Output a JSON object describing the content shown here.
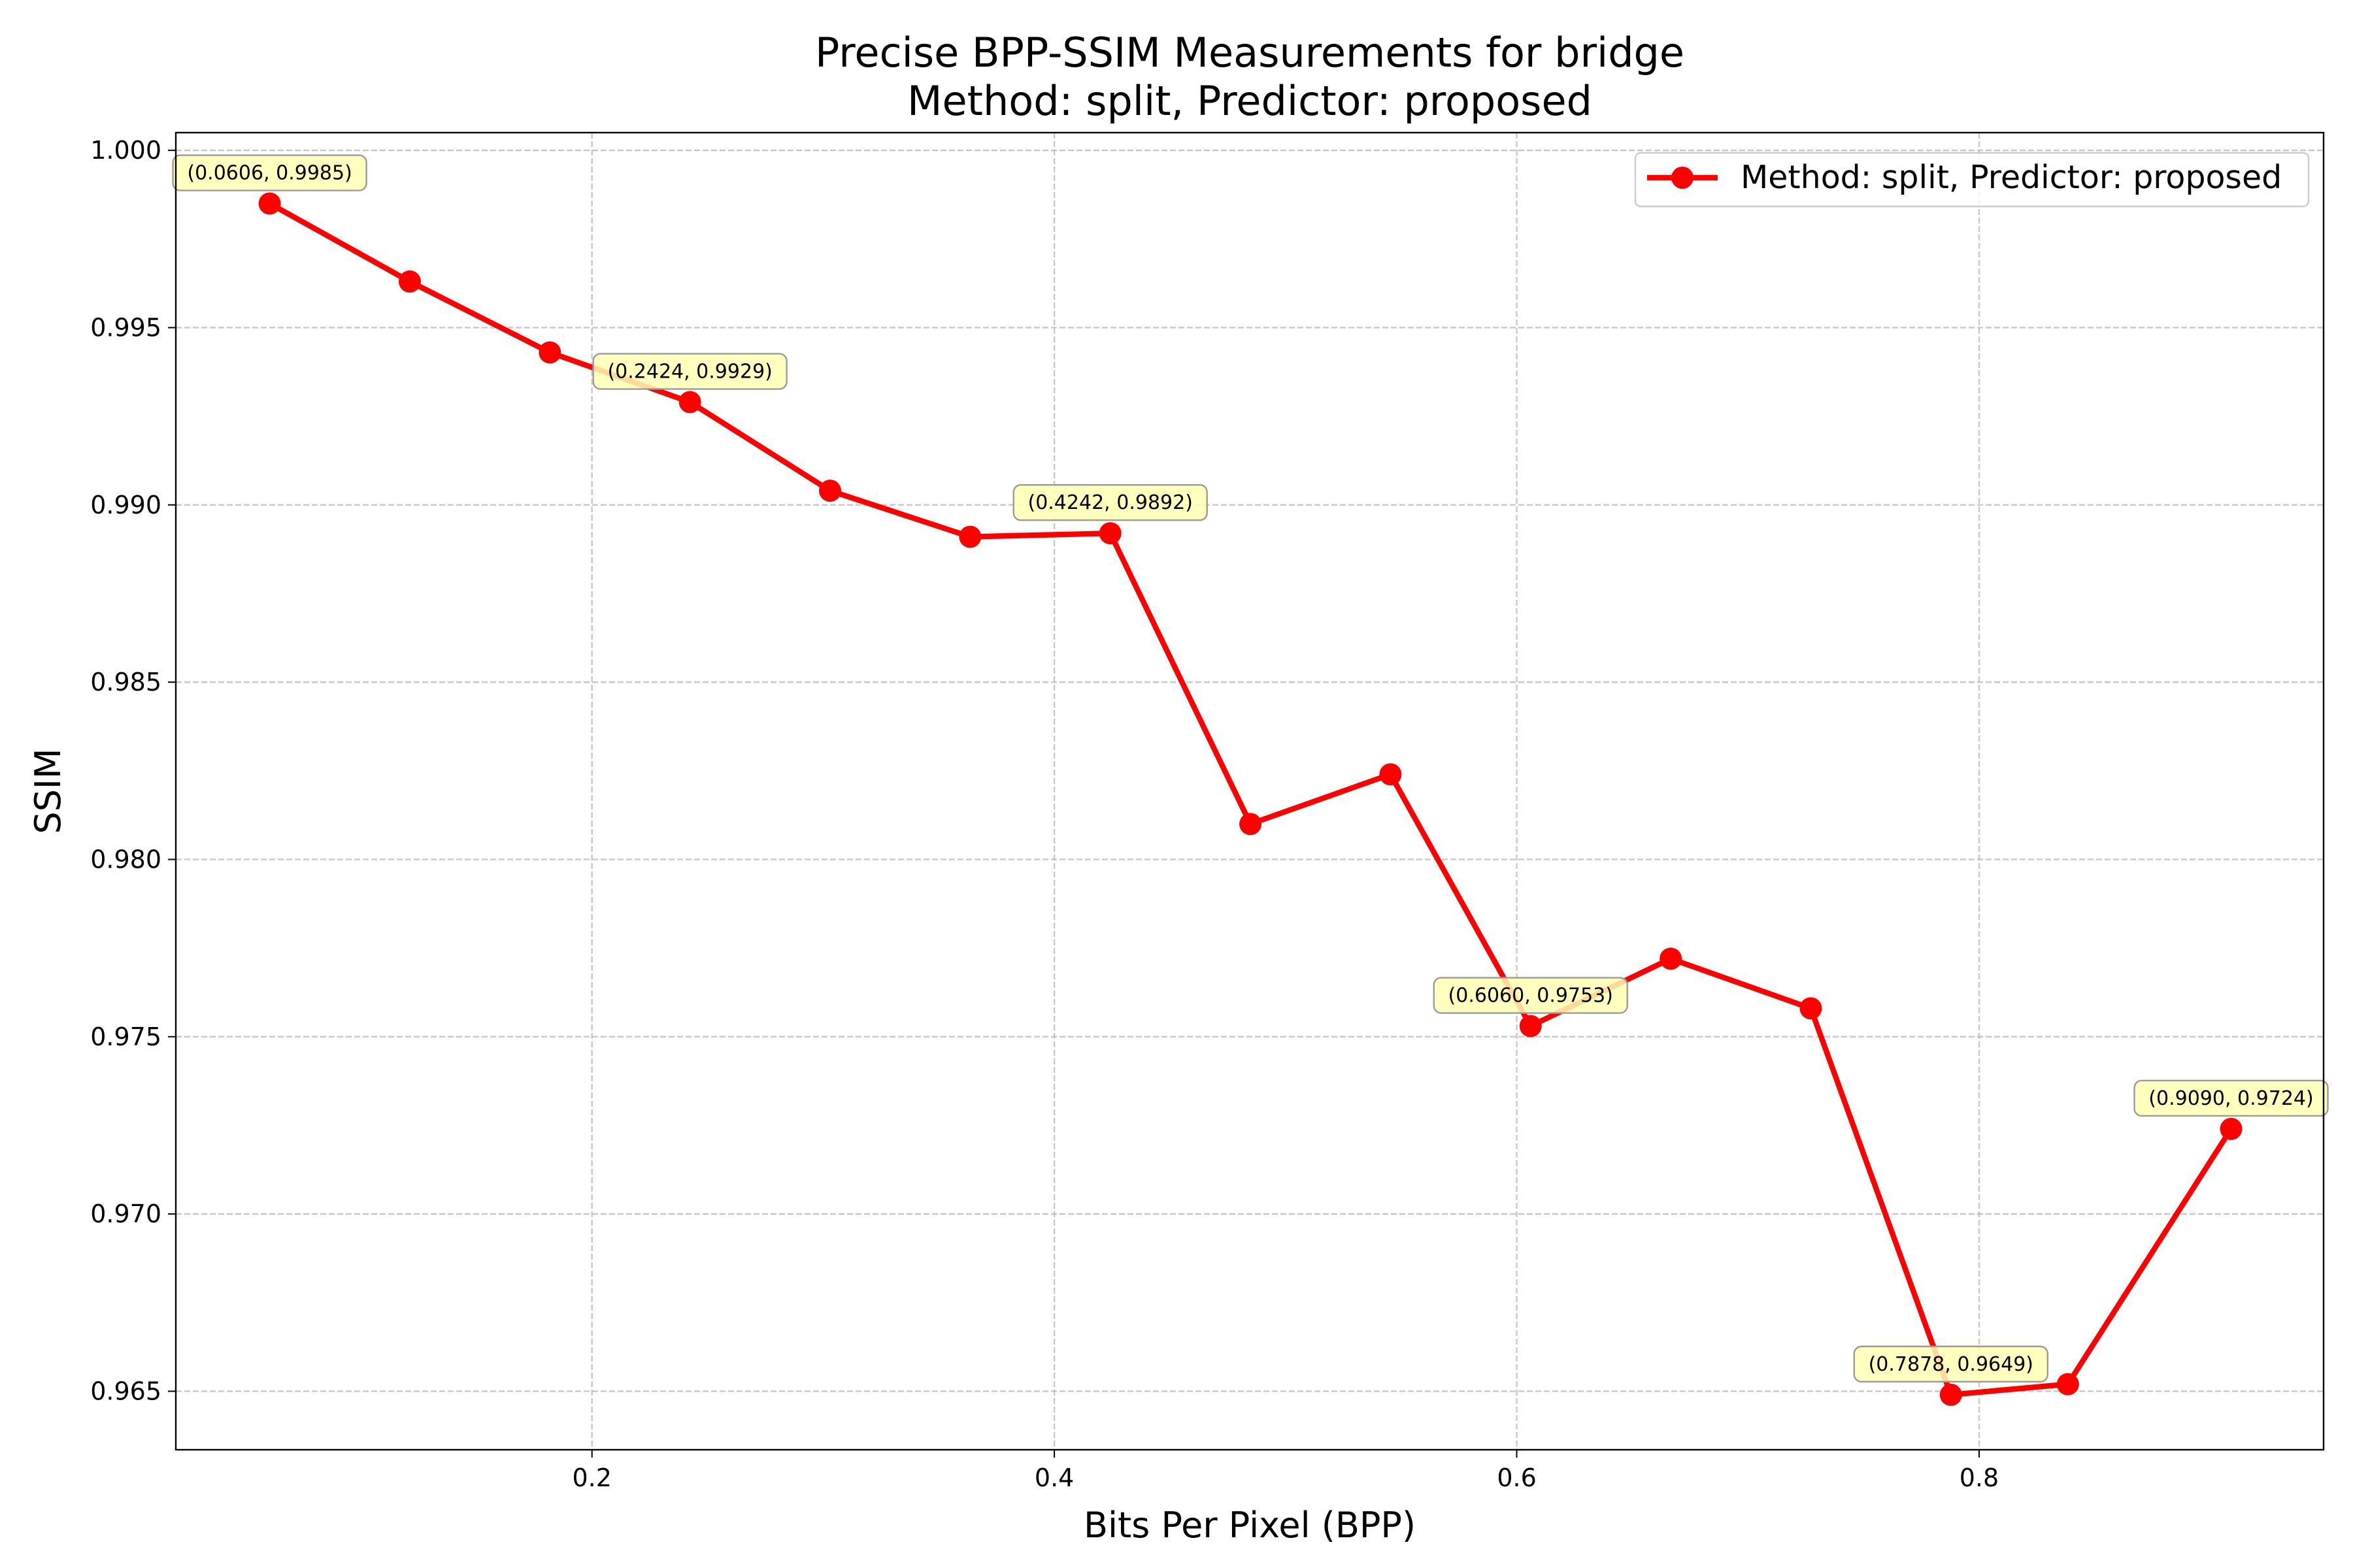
{
  "chart_data": {
    "type": "line",
    "title": "Precise BPP-SSIM Measurements for bridge",
    "subtitle": "Method: split, Predictor: proposed",
    "xlabel": "Bits Per Pixel (BPP)",
    "ylabel": "SSIM",
    "xlim": [
      0.02,
      0.949
    ],
    "ylim": [
      0.96335,
      1.0005
    ],
    "xticks": [
      0.2,
      0.4,
      0.6,
      0.8
    ],
    "xtick_labels": [
      "0.2",
      "0.4",
      "0.6",
      "0.8"
    ],
    "yticks": [
      0.965,
      0.97,
      0.975,
      0.98,
      0.985,
      0.99,
      0.995,
      1.0
    ],
    "ytick_labels": [
      "0.965",
      "0.970",
      "0.975",
      "0.980",
      "0.985",
      "0.990",
      "0.995",
      "1.000"
    ],
    "grid": true,
    "legend_position": "top-right",
    "series": [
      {
        "name": "Method: split, Predictor: proposed",
        "color": "#ff0000",
        "x": [
          0.0606,
          0.1212,
          0.1818,
          0.2424,
          0.303,
          0.3636,
          0.4242,
          0.4848,
          0.5454,
          0.606,
          0.6666,
          0.7272,
          0.7878,
          0.8384,
          0.909
        ],
        "y": [
          0.9985,
          0.9963,
          0.9943,
          0.9929,
          0.9904,
          0.9891,
          0.9892,
          0.981,
          0.9824,
          0.9753,
          0.9772,
          0.9758,
          0.9649,
          0.9652,
          0.9724
        ]
      }
    ],
    "annotations": [
      {
        "x": 0.0606,
        "y": 0.9985,
        "text": "(0.0606, 0.9985)"
      },
      {
        "x": 0.2424,
        "y": 0.9929,
        "text": "(0.2424, 0.9929)"
      },
      {
        "x": 0.4242,
        "y": 0.9892,
        "text": "(0.4242, 0.9892)"
      },
      {
        "x": 0.606,
        "y": 0.9753,
        "text": "(0.6060, 0.9753)"
      },
      {
        "x": 0.7878,
        "y": 0.9649,
        "text": "(0.7878, 0.9649)"
      },
      {
        "x": 0.909,
        "y": 0.9724,
        "text": "(0.9090, 0.9724)"
      }
    ],
    "annotation_style": {
      "fill": "#ffffb3",
      "stroke": "#9a9a9a"
    }
  }
}
